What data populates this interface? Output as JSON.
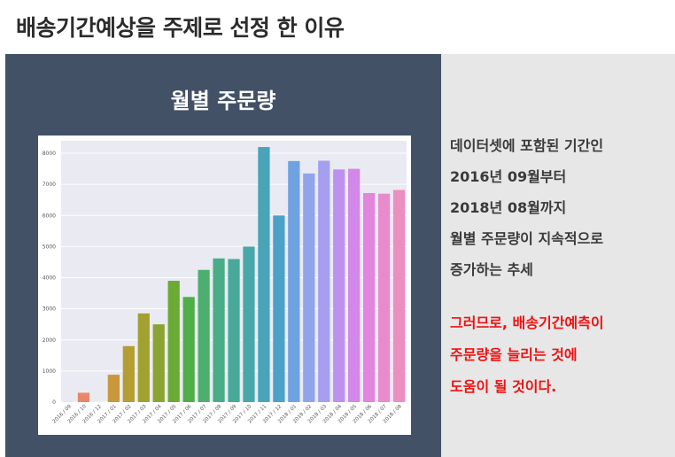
{
  "slide": {
    "title": "배송기간예상을 주제로 선정 한 이유"
  },
  "chart_panel": {
    "title": "월별 주문량"
  },
  "description": {
    "lines": [
      "데이터셋에 포함된 기간인",
      "2016년 09월부터",
      "2018년 08월까지",
      "월별 주문량이 지속적으로",
      "증가하는 추세"
    ]
  },
  "conclusion": {
    "color": "#ee1111",
    "lines": [
      "그러므로, 배송기간예측이",
      "주문량을 늘리는 것에",
      "도움이 될 것이다."
    ]
  },
  "chart_data": {
    "type": "bar",
    "title": "",
    "xlabel": "",
    "ylabel": "",
    "ylim": [
      0,
      8400
    ],
    "yticks": [
      0,
      1000,
      2000,
      3000,
      4000,
      5000,
      6000,
      7000,
      8000
    ],
    "grid": true,
    "background": "#eaeaf2",
    "categories": [
      "2016 / 09",
      "2016 / 10",
      "2016 / 12",
      "2017 / 01",
      "2017 / 02",
      "2017 / 03",
      "2017 / 04",
      "2017 / 05",
      "2017 / 06",
      "2017 / 07",
      "2017 / 08",
      "2017 / 09",
      "2017 / 10",
      "2017 / 11",
      "2017 / 12",
      "2018 / 01",
      "2018 / 02",
      "2018 / 03",
      "2018 / 04",
      "2018 / 05",
      "2018 / 06",
      "2018 / 07",
      "2018 / 08"
    ],
    "values": [
      4,
      300,
      1,
      880,
      1800,
      2850,
      2500,
      3900,
      3380,
      4250,
      4620,
      4600,
      5000,
      8200,
      6000,
      7750,
      7350,
      7760,
      7480,
      7500,
      6720,
      6700,
      6820
    ],
    "colors": [
      "#f27f80",
      "#e9866a",
      "#dc8f4f",
      "#c9983c",
      "#b49e33",
      "#a0a131",
      "#8aa432",
      "#6aaa35",
      "#4fae47",
      "#4caf70",
      "#49ad87",
      "#47aa99",
      "#48a7a9",
      "#49a4b7",
      "#4ba1c8",
      "#6ea2e1",
      "#8fa4ea",
      "#a59ff0",
      "#bc92ee",
      "#d288e8",
      "#e186dc",
      "#e88bcd",
      "#ea8fc0"
    ]
  }
}
